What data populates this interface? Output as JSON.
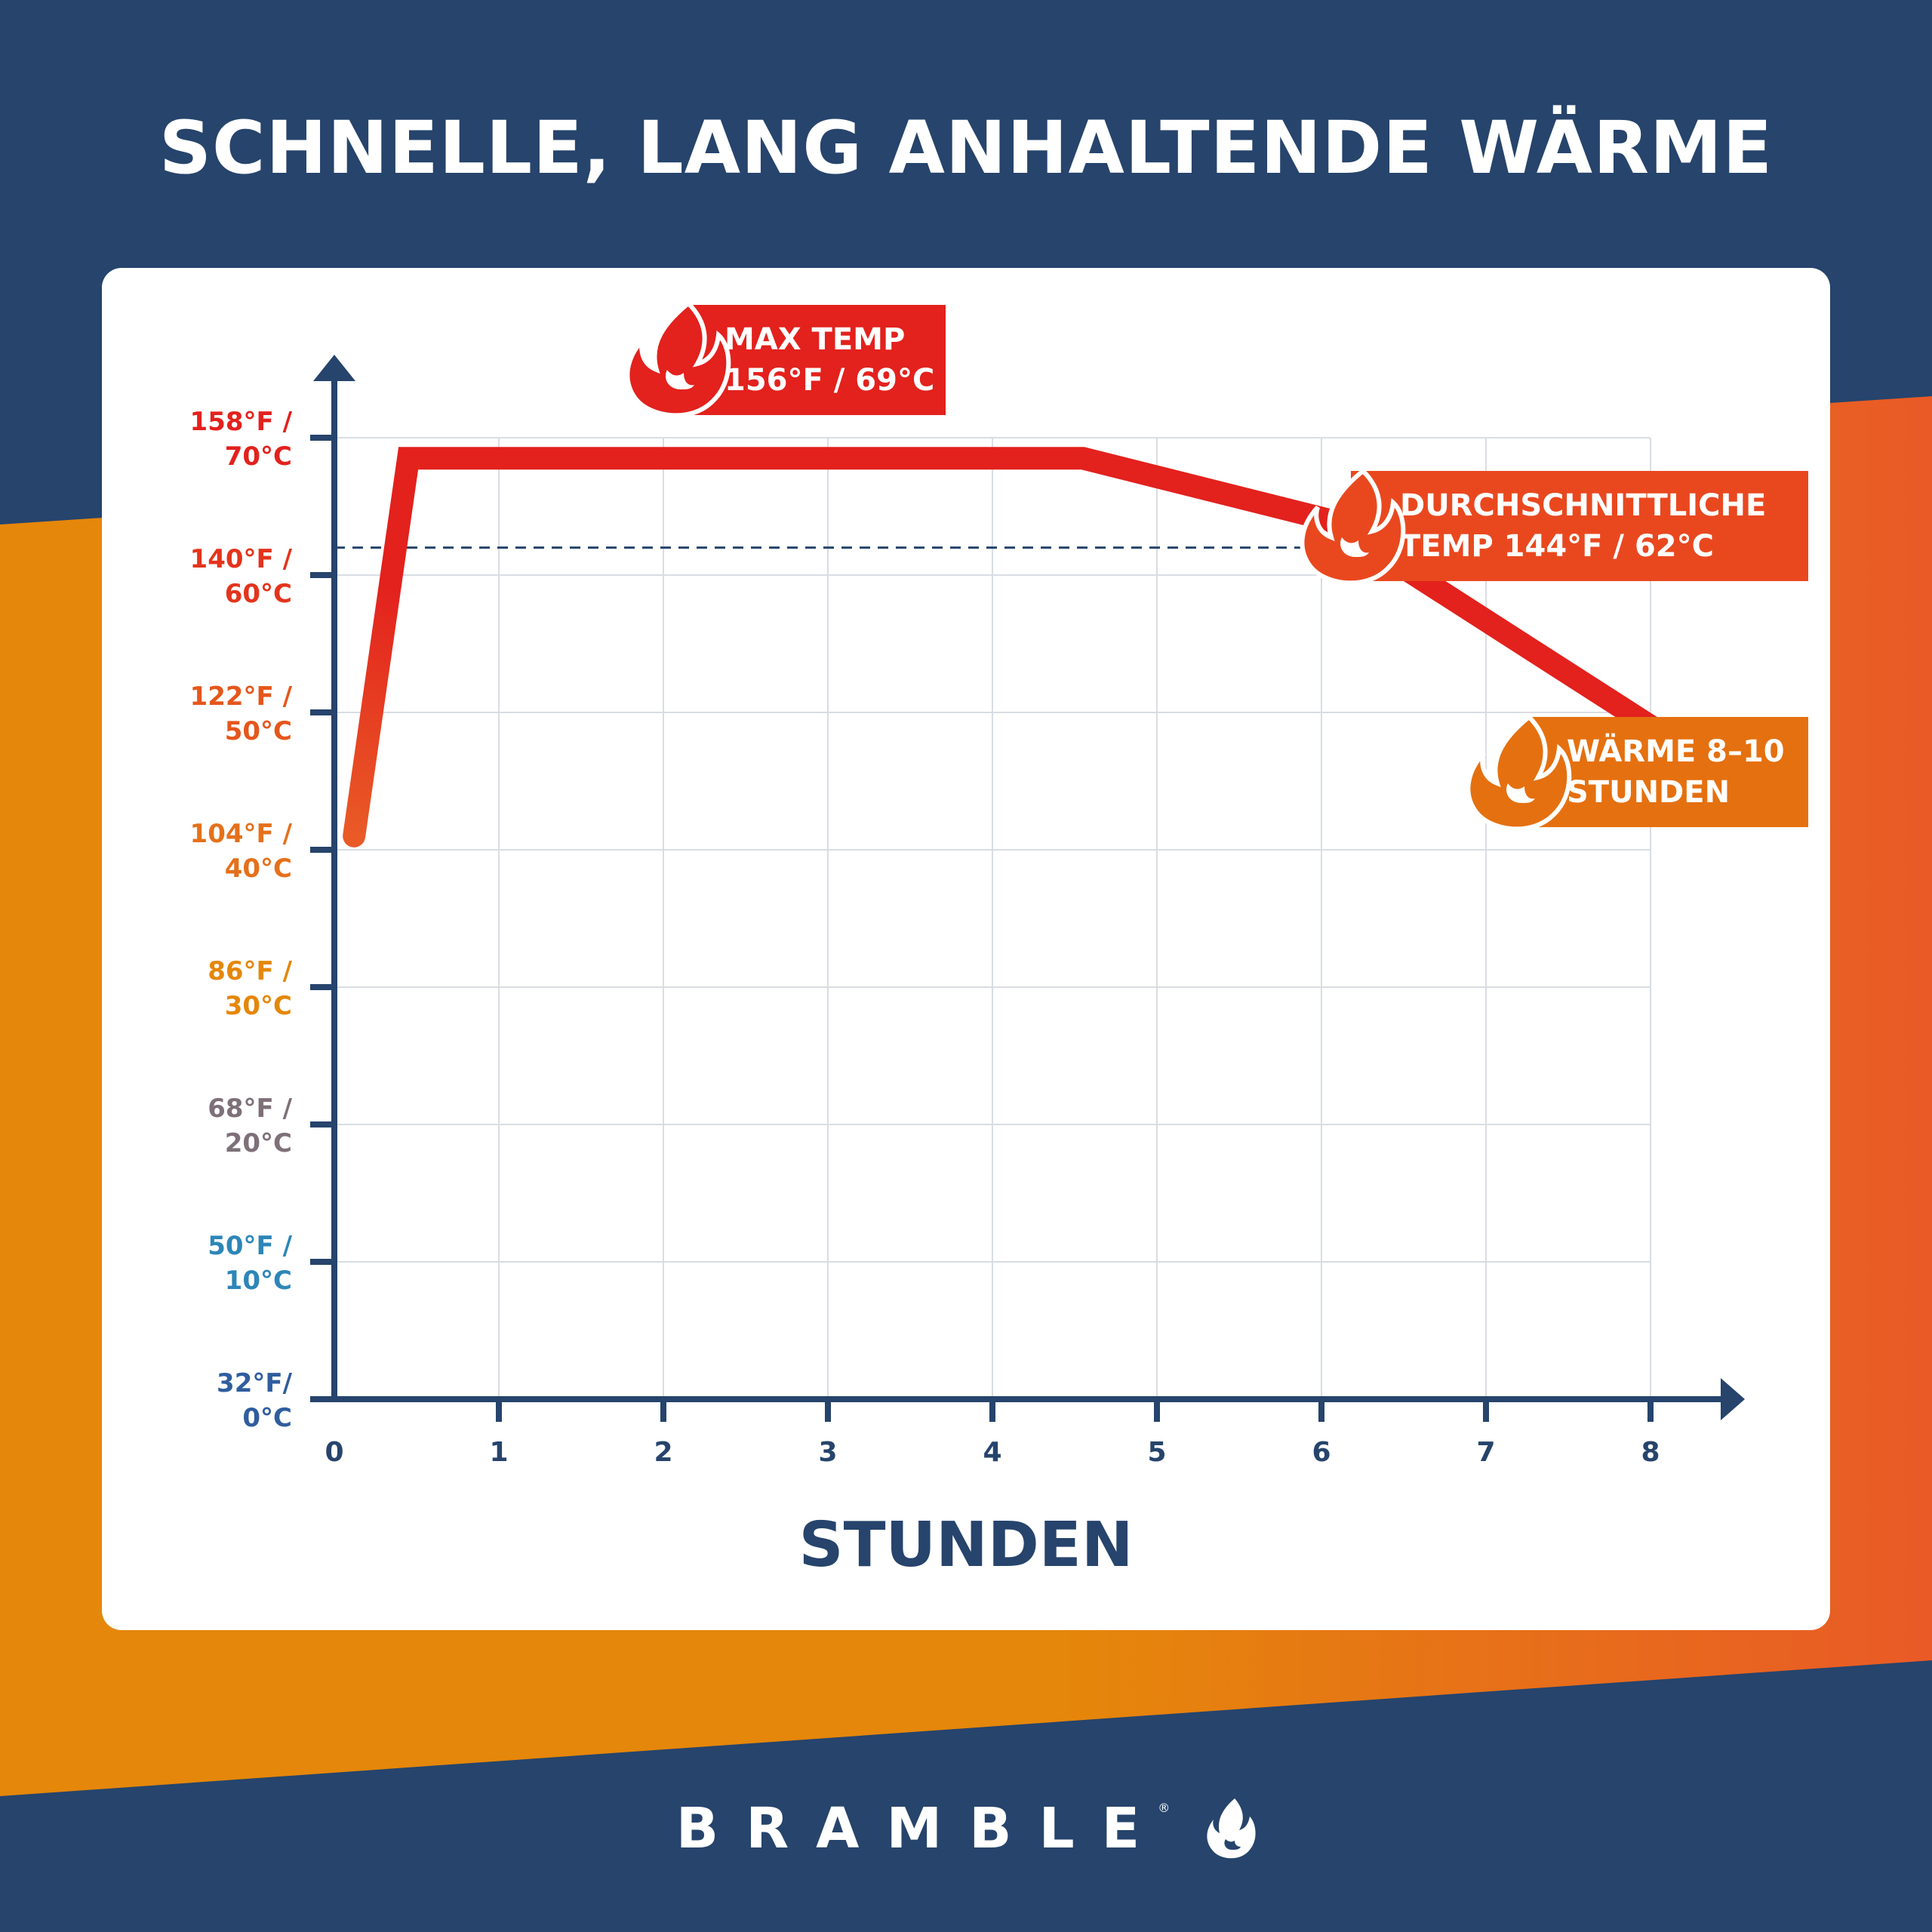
{
  "title": "SCHNELLE, LANG ANHALTENDE WÄRME",
  "colors": {
    "navy": "#26446c",
    "orange": "#e5870a",
    "orange_red": "#e95a26",
    "red": "#e3211d",
    "grid": "#d9dde3"
  },
  "chart_data": {
    "type": "line",
    "title": "SCHNELLE, LANG ANHALTENDE WÄRME",
    "xlabel": "STUNDEN",
    "ylabel": "",
    "x_ticks": [
      "0",
      "1",
      "2",
      "3",
      "4",
      "5",
      "6",
      "7",
      "8"
    ],
    "xlim": [
      0,
      8
    ],
    "ylim": [
      0,
      70
    ],
    "y_ticks": [
      {
        "value": 70,
        "label": "158°F /\n70°C",
        "color": "#e3211d"
      },
      {
        "value": 60,
        "label": "140°F /\n60°C",
        "color": "#e3341c"
      },
      {
        "value": 50,
        "label": "122°F /\n50°C",
        "color": "#e5561b"
      },
      {
        "value": 40,
        "label": "104°F /\n40°C",
        "color": "#e5701a"
      },
      {
        "value": 30,
        "label": "86°F /\n30°C",
        "color": "#e5870a"
      },
      {
        "value": 20,
        "label": "68°F /\n20°C",
        "color": "#7e7079"
      },
      {
        "value": 10,
        "label": "50°F /\n10°C",
        "color": "#2d86b8"
      },
      {
        "value": 0,
        "label": "32°F/\n0°C",
        "color": "#2f5d9e"
      }
    ],
    "grid": true,
    "series": [
      {
        "x": [
          0.12,
          0.45,
          4.55,
          6.05,
          8.0
        ],
        "y": [
          41,
          68.5,
          68.5,
          64,
          49
        ]
      }
    ],
    "reference_line": {
      "y": 62,
      "style": "dashed"
    },
    "annotations": [
      {
        "id": "max",
        "line1": "MAX TEMP",
        "line2": "156°F / 69°C",
        "color": "#e3211d"
      },
      {
        "id": "avg",
        "line1": "DURCHSCHNITTLICHE",
        "line2": "TEMP 144°F / 62°C",
        "color": "#e9481f"
      },
      {
        "id": "dur",
        "line1": "WÄRME 8–10",
        "line2": "STUNDEN",
        "color": "#e5700f"
      }
    ]
  },
  "footer": {
    "brand": "BRAMBLE",
    "registered": "®",
    "icon": "flame-icon"
  }
}
